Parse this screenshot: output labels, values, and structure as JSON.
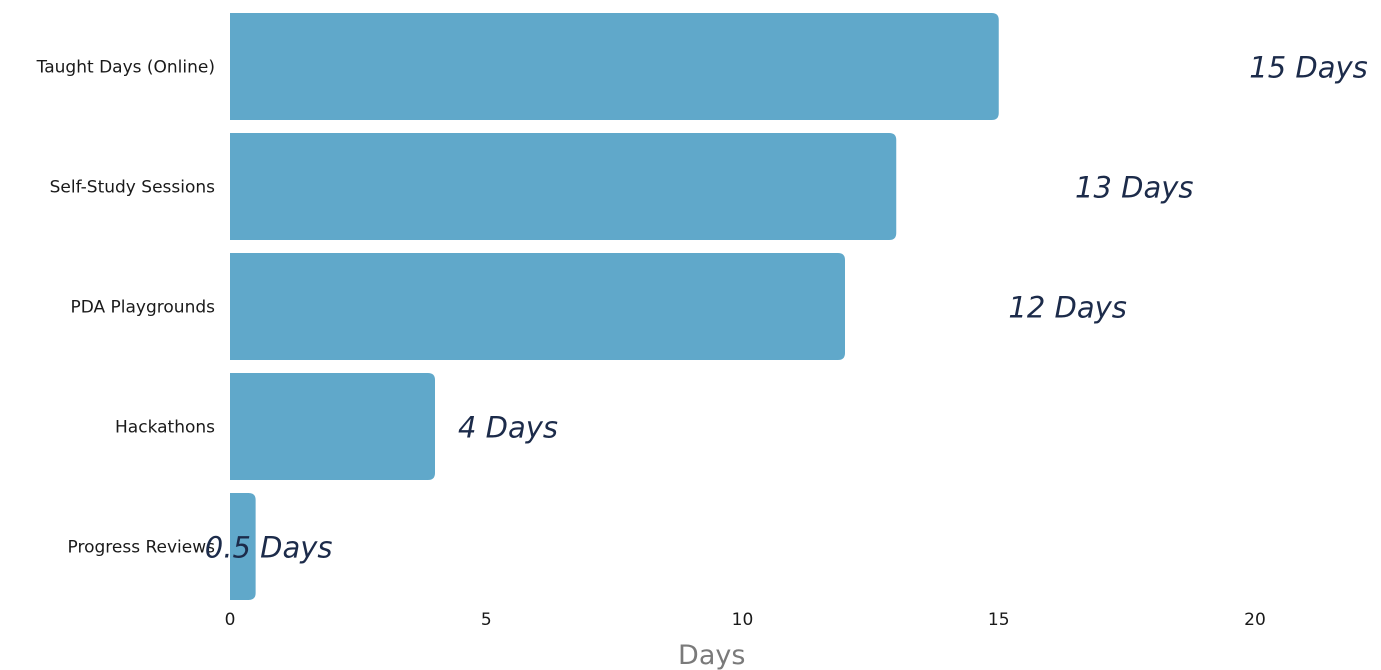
{
  "chart_data": {
    "type": "bar",
    "orientation": "horizontal",
    "categories": [
      "Taught Days (Online)",
      "Self-Study Sessions",
      "PDA Playgrounds",
      "Hackathons",
      "Progress Reviews"
    ],
    "values": [
      15,
      13,
      12,
      4,
      0.5
    ],
    "annotations": [
      "15 Days",
      "13 Days",
      "12 Days",
      "4 Days",
      "0.5 Days"
    ],
    "annotation_x": [
      22.2,
      18.8,
      17.5,
      6.4,
      2.0
    ],
    "xlabel": "Days",
    "ylabel": "",
    "xlim": [
      0,
      22
    ],
    "xticks": [
      0,
      5,
      10,
      15,
      20
    ],
    "xtick_labels": [
      "0",
      "5",
      "10",
      "15",
      "20"
    ],
    "grid": false,
    "bar_color": "#60a8ca",
    "annotation_color": "#1c2b4a"
  }
}
